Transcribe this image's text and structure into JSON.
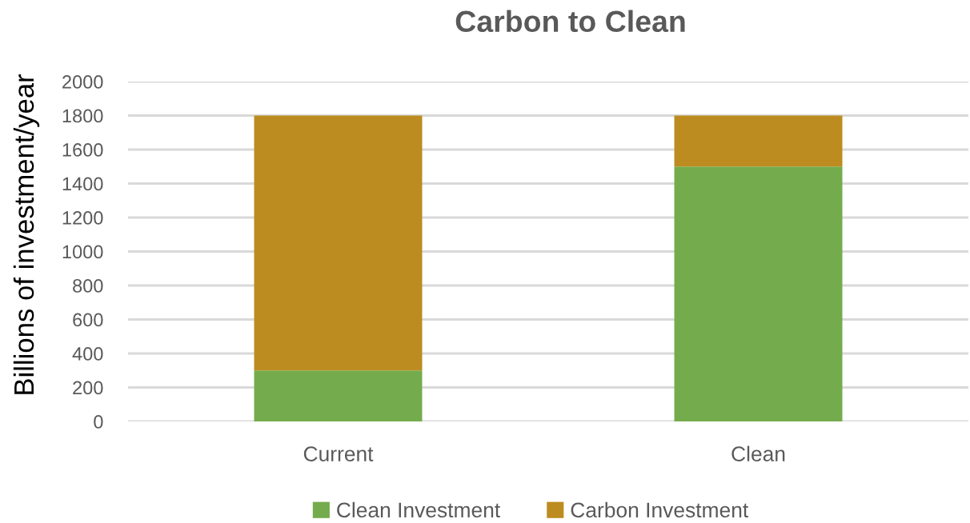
{
  "chart_data": {
    "type": "bar",
    "title": "Carbon to Clean",
    "ylabel": "Billions of investment/year",
    "categories": [
      "Current",
      "Clean"
    ],
    "series": [
      {
        "name": "Clean Investment",
        "color": "#74ac4d",
        "values": [
          300,
          1500
        ]
      },
      {
        "name": "Carbon Investment",
        "color": "#bd8c20",
        "values": [
          1500,
          300
        ]
      }
    ],
    "stacked": true,
    "ylim": [
      0,
      2000
    ],
    "yticks": [
      0,
      200,
      400,
      600,
      800,
      1000,
      1200,
      1400,
      1600,
      1800,
      2000
    ],
    "grid": "y",
    "legend": "bottom"
  }
}
